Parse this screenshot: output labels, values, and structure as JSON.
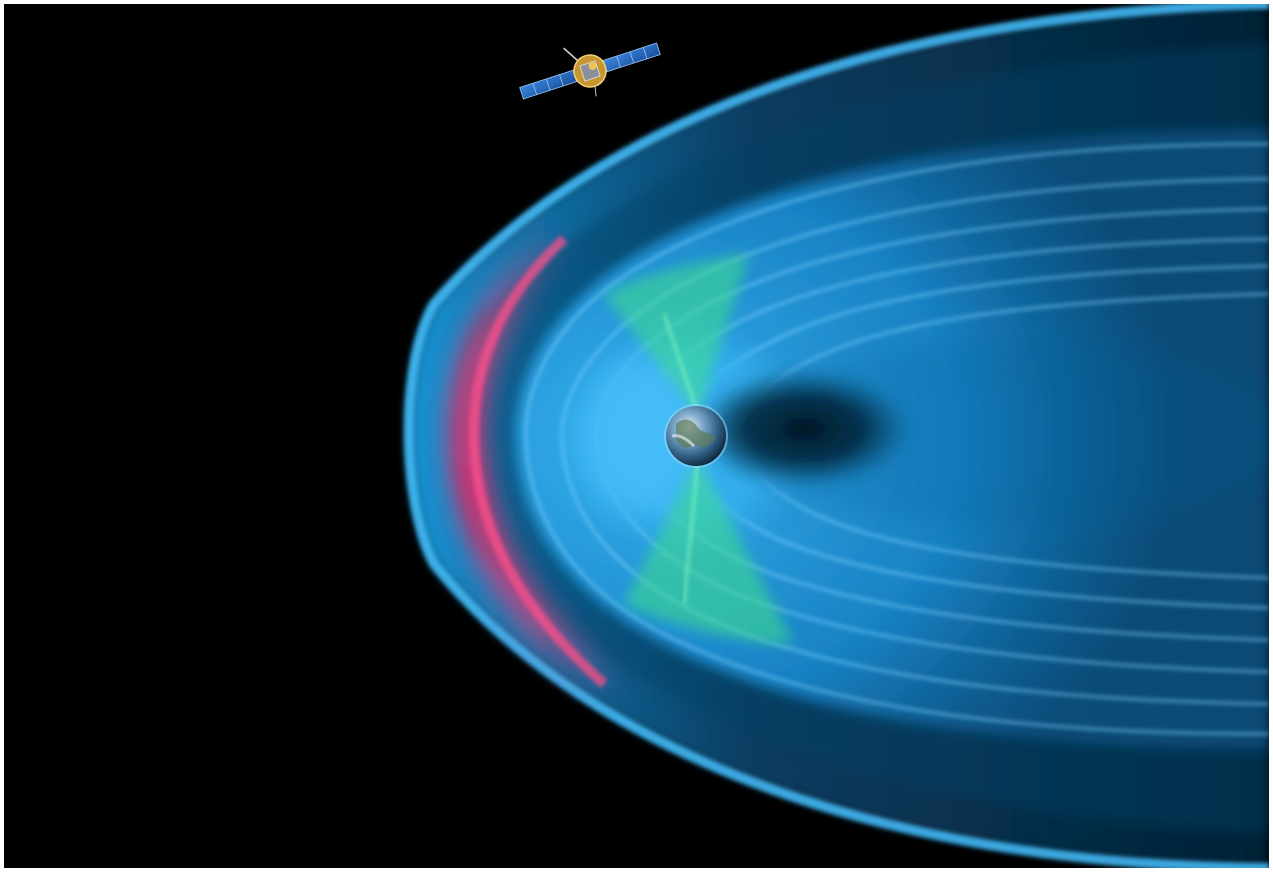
{
  "image": {
    "kind": "illustration",
    "subject_elements": [
      "spacecraft",
      "magnetosphere",
      "bow-shock",
      "earth",
      "polar-cusps",
      "magnetotail"
    ],
    "colors": {
      "background": "#000000",
      "border": "#ffffff",
      "magnetosphere": "#1e9be0",
      "bow_shock_glow": "#ff2a6e",
      "cusp": "#3fe08a",
      "tail_core": "#000000",
      "solar_panel": "#2a6fc9",
      "spacecraft_body": "#c8962e"
    }
  }
}
